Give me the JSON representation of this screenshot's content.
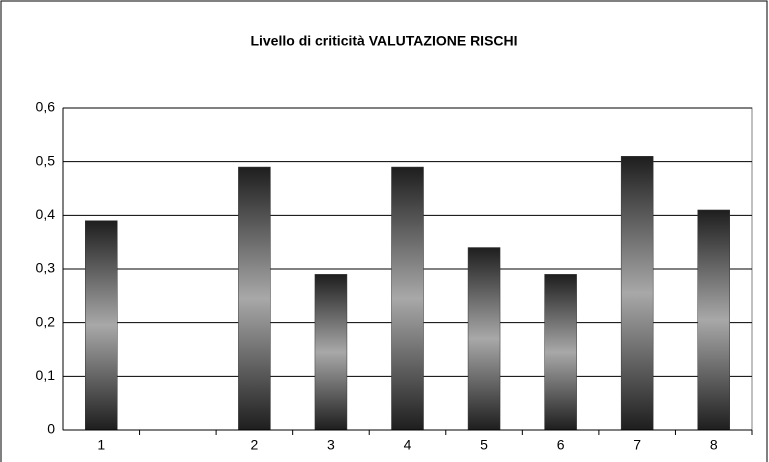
{
  "chart_data": {
    "type": "bar",
    "title": "Livello di criticità VALUTAZIONE RISCHI",
    "categories": [
      "1",
      null,
      "2",
      "3",
      "4",
      "5",
      "6",
      "7",
      "8"
    ],
    "values": [
      0.39,
      null,
      0.49,
      0.29,
      0.49,
      0.34,
      0.29,
      0.51,
      0.41
    ],
    "color": "#7a7a7a",
    "ylim": [
      0,
      0.6
    ],
    "yticks": [
      0,
      {
        "value": 0.1,
        "label": "0,1"
      },
      {
        "value": 0.2,
        "label": "0,2"
      },
      {
        "value": 0.3,
        "label": "0,3"
      },
      {
        "value": 0.4,
        "label": "0,4"
      },
      {
        "value": 0.5,
        "label": "0,5"
      },
      {
        "value": 0.6,
        "label": "0,6"
      }
    ],
    "grid": true
  }
}
